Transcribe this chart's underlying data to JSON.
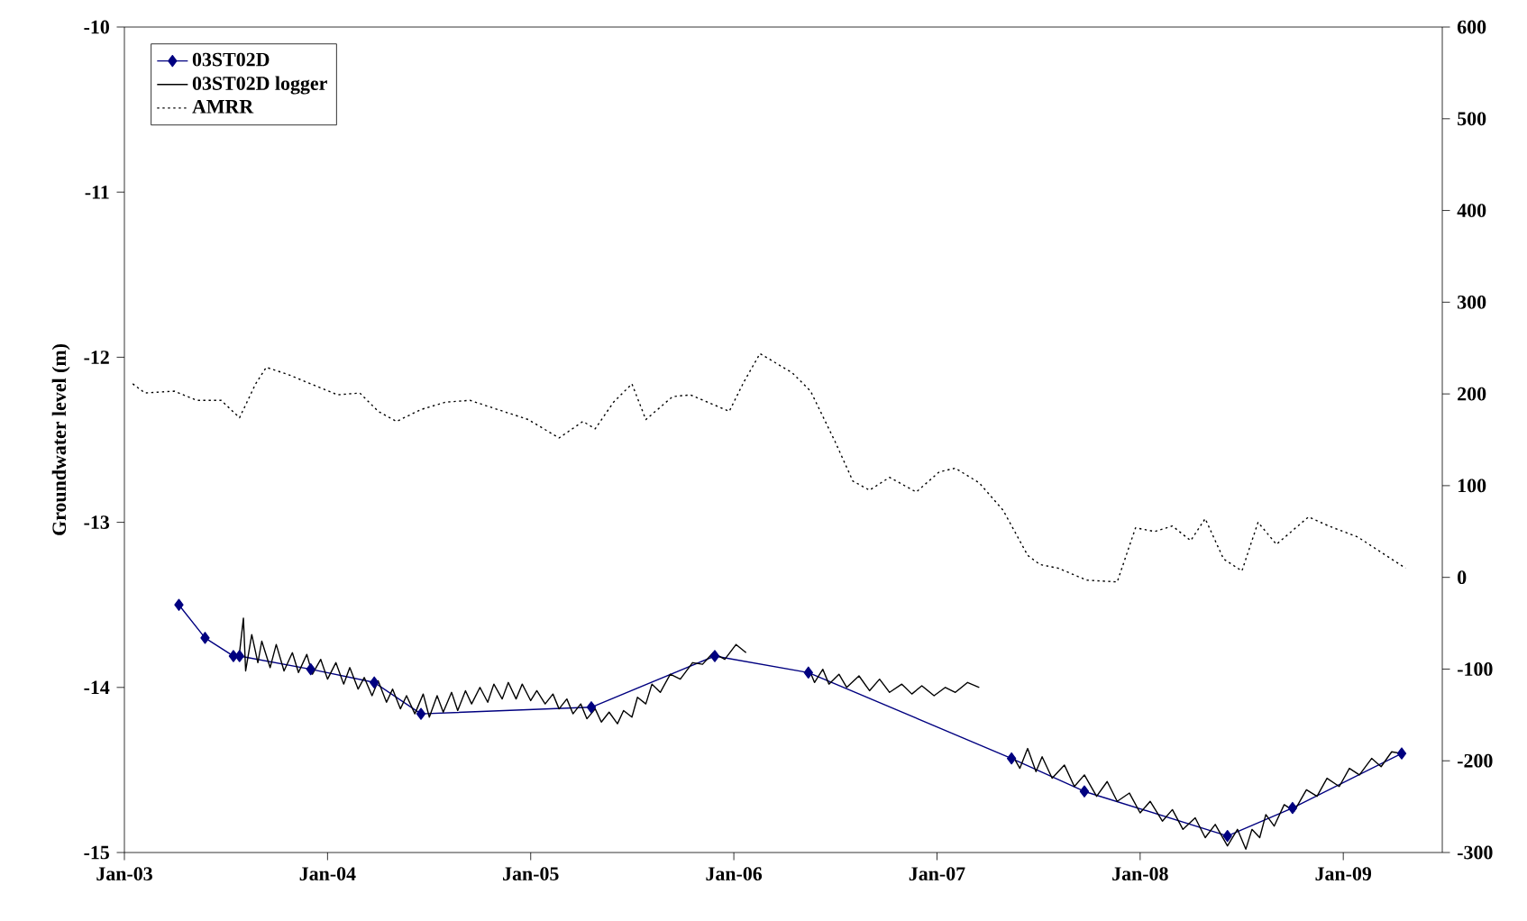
{
  "chart_data": {
    "type": "line",
    "ylabel": "Groundwater level (m)",
    "xlim": [
      "2003-01-01",
      "2009-06-28"
    ],
    "xticks": [
      {
        "value": "2003-01-01",
        "label": "Jan-03"
      },
      {
        "value": "2004-01-01",
        "label": "Jan-04"
      },
      {
        "value": "2005-01-01",
        "label": "Jan-05"
      },
      {
        "value": "2006-01-01",
        "label": "Jan-06"
      },
      {
        "value": "2007-01-01",
        "label": "Jan-07"
      },
      {
        "value": "2008-01-01",
        "label": "Jan-08"
      },
      {
        "value": "2009-01-01",
        "label": "Jan-09"
      }
    ],
    "ylim": [
      -15,
      -10
    ],
    "yticks": [
      -15,
      -14,
      -13,
      -12,
      -11,
      -10
    ],
    "y2lim": [
      -300,
      600
    ],
    "y2ticks": [
      -300,
      -200,
      -100,
      0,
      100,
      200,
      300,
      400,
      500,
      600
    ],
    "legend": "top left",
    "series": [
      {
        "name": "03ST02D",
        "color": "#000080",
        "marker": "diamond",
        "line_style": "solid",
        "x": [
          "2003-04-09",
          "2003-05-26",
          "2003-07-16",
          "2003-07-27",
          "2003-12-02",
          "2004-03-25",
          "2004-06-17",
          "2005-04-20",
          "2005-11-28",
          "2006-05-15",
          "2007-05-15",
          "2007-09-23",
          "2008-06-06",
          "2008-10-01",
          "2009-04-16"
        ],
        "values": [
          -13.5,
          -13.7,
          -13.81,
          -13.81,
          -13.89,
          -13.97,
          -14.16,
          -14.12,
          -13.81,
          -13.91,
          -14.43,
          -14.63,
          -14.9,
          -14.73,
          -14.4
        ]
      },
      {
        "name": "03ST02D logger",
        "color": "#000000",
        "marker": "none",
        "line_style": "solid",
        "x": [
          "2003-07-27",
          "2003-08-03",
          "2003-08-07",
          "2003-08-18",
          "2003-08-29",
          "2003-09-05",
          "2003-09-20",
          "2003-10-01",
          "2003-10-15",
          "2003-10-30",
          "2003-11-10",
          "2003-11-25",
          "2003-12-05",
          "2003-12-20",
          "2004-01-01",
          "2004-01-16",
          "2004-01-30",
          "2004-02-10",
          "2004-02-25",
          "2004-03-07",
          "2004-03-21",
          "2004-04-01",
          "2004-04-16",
          "2004-04-27",
          "2004-05-11",
          "2004-05-22",
          "2004-06-06",
          "2004-06-21",
          "2004-07-02",
          "2004-07-16",
          "2004-07-27",
          "2004-08-11",
          "2004-08-22",
          "2004-09-05",
          "2004-09-16",
          "2004-10-01",
          "2004-10-15",
          "2004-10-26",
          "2004-11-10",
          "2004-11-21",
          "2004-12-05",
          "2004-12-16",
          "2005-01-01",
          "2005-01-12",
          "2005-01-27",
          "2005-02-10",
          "2005-02-21",
          "2005-03-07",
          "2005-03-18",
          "2005-04-01",
          "2005-04-12",
          "2005-04-27",
          "2005-05-08",
          "2005-05-22",
          "2005-06-06",
          "2005-06-17",
          "2005-07-02",
          "2005-07-12",
          "2005-07-27",
          "2005-08-07",
          "2005-08-22",
          "2005-09-09",
          "2005-09-27",
          "2005-10-19",
          "2005-11-06",
          "2005-11-25",
          "2005-12-16",
          "2006-01-05",
          "2006-01-23",
          "2006-03-14",
          "2006-05-15",
          "2006-05-26",
          "2006-06-10",
          "2006-06-21",
          "2006-07-09",
          "2006-07-23",
          "2006-08-14",
          "2006-09-02",
          "2006-09-20",
          "2006-10-08",
          "2006-10-30",
          "2006-11-17",
          "2006-12-05",
          "2006-12-27",
          "2007-01-16",
          "2007-02-03",
          "2007-02-25",
          "2007-03-18",
          "2007-04-20",
          "2007-05-15",
          "2007-05-30",
          "2007-06-13",
          "2007-06-28",
          "2007-07-09",
          "2007-07-27",
          "2007-08-18",
          "2007-09-05",
          "2007-09-23",
          "2007-10-15",
          "2007-11-03",
          "2007-11-21",
          "2007-12-13",
          "2008-01-01",
          "2008-01-19",
          "2008-02-10",
          "2008-02-28",
          "2008-03-18",
          "2008-04-09",
          "2008-04-27",
          "2008-05-15",
          "2008-06-06",
          "2008-06-24",
          "2008-07-09",
          "2008-07-20",
          "2008-08-03",
          "2008-08-14",
          "2008-08-29",
          "2008-09-16",
          "2008-10-04",
          "2008-10-26",
          "2008-11-14",
          "2008-12-02",
          "2008-12-24",
          "2009-01-12",
          "2009-01-30",
          "2009-02-21",
          "2009-03-10",
          "2009-03-29",
          "2009-04-16"
        ],
        "values": [
          -13.79,
          -13.58,
          -13.9,
          -13.68,
          -13.85,
          -13.72,
          -13.88,
          -13.74,
          -13.9,
          -13.79,
          -13.91,
          -13.8,
          -13.92,
          -13.83,
          -13.95,
          -13.85,
          -13.98,
          -13.88,
          -14.01,
          -13.94,
          -14.05,
          -13.96,
          -14.09,
          -14.01,
          -14.13,
          -14.05,
          -14.16,
          -14.04,
          -14.18,
          -14.05,
          -14.15,
          -14.03,
          -14.14,
          -14.02,
          -14.1,
          -14.0,
          -14.09,
          -13.98,
          -14.07,
          -13.97,
          -14.07,
          -13.98,
          -14.08,
          -14.02,
          -14.1,
          -14.04,
          -14.13,
          -14.07,
          -14.16,
          -14.1,
          -14.19,
          -14.13,
          -14.21,
          -14.15,
          -14.22,
          -14.14,
          -14.18,
          -14.06,
          -14.1,
          -13.98,
          -14.03,
          -13.92,
          -13.95,
          -13.85,
          -13.86,
          -13.79,
          -13.83,
          -13.74,
          -13.79,
          null,
          -13.88,
          -13.97,
          -13.89,
          -13.98,
          -13.92,
          -14.0,
          -13.93,
          -14.02,
          -13.95,
          -14.03,
          -13.98,
          -14.04,
          -13.99,
          -14.05,
          -14.0,
          -14.03,
          -13.97,
          -14.0,
          null,
          -14.4,
          -14.49,
          -14.37,
          -14.51,
          -14.42,
          -14.55,
          -14.47,
          -14.6,
          -14.53,
          -14.66,
          -14.57,
          -14.69,
          -14.64,
          -14.76,
          -14.69,
          -14.81,
          -14.74,
          -14.86,
          -14.79,
          -14.91,
          -14.83,
          -14.96,
          -14.86,
          -14.98,
          -14.86,
          -14.91,
          -14.77,
          -14.84,
          -14.71,
          -14.75,
          -14.62,
          -14.66,
          -14.55,
          -14.6,
          -14.49,
          -14.53,
          -14.43,
          -14.48,
          -14.39,
          -14.4
        ]
      },
      {
        "name": "AMRR",
        "color": "#000000",
        "marker": "none",
        "line_style": "dotted",
        "axis": "y2",
        "x": [
          "2003-01-16",
          "2003-02-07",
          "2003-04-01",
          "2003-05-11",
          "2003-06-24",
          "2003-07-27",
          "2003-08-25",
          "2003-09-13",
          "2003-10-23",
          "2003-12-02",
          "2004-01-19",
          "2004-02-28",
          "2004-04-01",
          "2004-05-04",
          "2004-06-17",
          "2004-07-31",
          "2004-09-13",
          "2004-10-23",
          "2004-12-27",
          "2005-02-21",
          "2005-04-05",
          "2005-04-27",
          "2005-05-30",
          "2005-07-02",
          "2005-07-27",
          "2005-09-13",
          "2005-10-15",
          "2005-12-24",
          "2006-01-19",
          "2006-02-17",
          "2006-04-16",
          "2006-05-19",
          "2006-07-02",
          "2006-08-03",
          "2006-09-02",
          "2006-10-08",
          "2006-11-25",
          "2007-01-05",
          "2007-02-03",
          "2007-03-18",
          "2007-04-30",
          "2007-06-13",
          "2007-07-05",
          "2007-08-07",
          "2007-09-27",
          "2007-11-21",
          "2007-12-24",
          "2008-01-27",
          "2008-02-28",
          "2008-04-01",
          "2008-04-27",
          "2008-05-30",
          "2008-07-02",
          "2008-07-31",
          "2008-09-02",
          "2008-10-30",
          "2008-12-05",
          "2009-01-27",
          "2009-04-23"
        ],
        "values": [
          211,
          201,
          203,
          193,
          193,
          174,
          211,
          229,
          221,
          211,
          199,
          201,
          181,
          170,
          183,
          191,
          193,
          185,
          172,
          152,
          170,
          162,
          191,
          211,
          172,
          197,
          199,
          181,
          213,
          244,
          223,
          203,
          148,
          105,
          95,
          109,
          93,
          115,
          119,
          103,
          73,
          24,
          14,
          10,
          -3,
          -5,
          54,
          50,
          56,
          40,
          64,
          20,
          7,
          60,
          36,
          66,
          56,
          44,
          10
        ]
      }
    ]
  }
}
